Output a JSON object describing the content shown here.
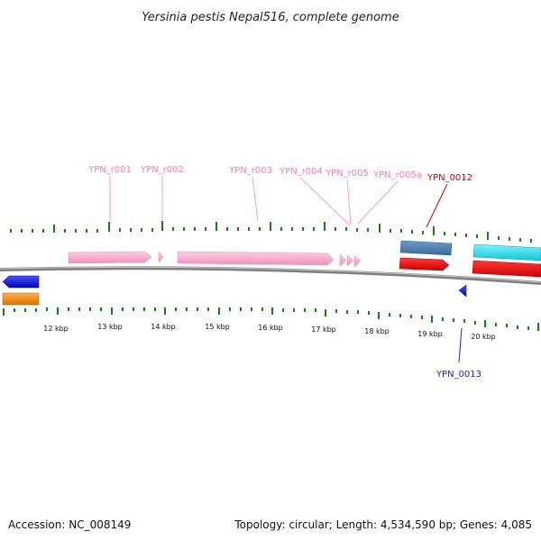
{
  "title": "Yersinia pestis Nepal516, complete genome",
  "accession_text": "Accession: NC_008149",
  "summary_text": "Topology: circular; Length: 4,534,590 bp; Genes: 4,085",
  "scale_labels": [
    "12 kbp",
    "13 kbp",
    "14 kbp",
    "15 kbp",
    "16 kbp",
    "17 kbp",
    "18 kbp",
    "19 kbp",
    "20 kbp"
  ],
  "gene_labels": [
    "YPN_r001",
    "YPN_r002",
    "YPN_r003",
    "YPN_r004",
    "YPN_r005",
    "YPN_r005a",
    "YPN_0012",
    "YPN_0013"
  ],
  "colors": {
    "backbone": "#7f7f7f",
    "ticks": "#1a7f1a",
    "rrna": "#f7a1c8",
    "rrna_label": "#ee82b8",
    "red_gene": "#e00000",
    "steel_gene": "#4a7fae",
    "cyan_gene": "#17d9e8",
    "blue_gene": "#0b13e0",
    "orange_gene": "#ff8a00",
    "label_red": "#cc0000",
    "label_blue": "#1a20cc"
  }
}
